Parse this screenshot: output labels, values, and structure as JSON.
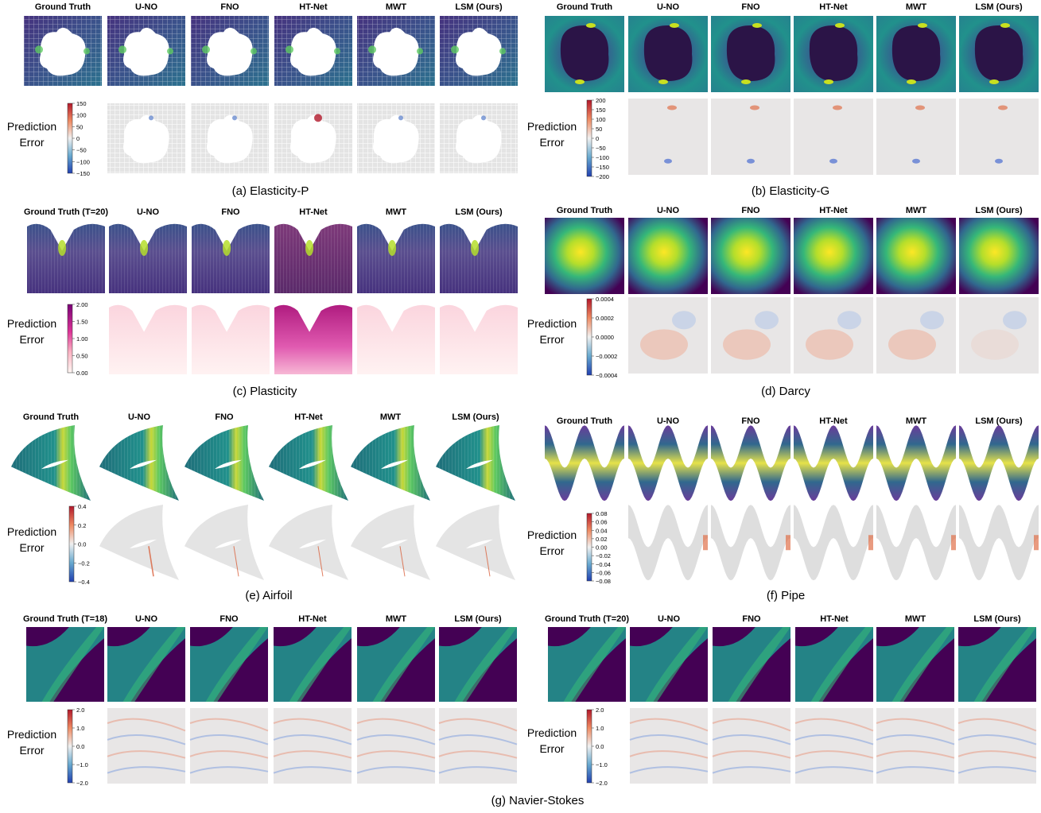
{
  "figure": {
    "methods": [
      "U-NO",
      "FNO",
      "HT-Net",
      "MWT",
      "LSM (Ours)"
    ],
    "error_label": [
      "Prediction",
      "Error"
    ],
    "panels": [
      {
        "id": "elasticity-p",
        "caption": "(a) Elasticity-P",
        "gt_label": "Ground Truth",
        "kind": "elasticity_p",
        "ticks": [
          "150",
          "100",
          "50",
          "0",
          "−50",
          "−100",
          "−150"
        ],
        "cmap": "bwr"
      },
      {
        "id": "elasticity-g",
        "caption": "(b) Elasticity-G",
        "gt_label": "Ground Truth",
        "kind": "elasticity_g",
        "ticks": [
          "200",
          "150",
          "100",
          "50",
          "0",
          "−50",
          "−100",
          "−150",
          "−200"
        ],
        "cmap": "bwr"
      },
      {
        "id": "plasticity",
        "caption": "(c) Plasticity",
        "gt_label": "Ground Truth (T=20)",
        "kind": "plasticity",
        "ticks": [
          "2.00",
          "1.50",
          "1.00",
          "0.50",
          "0.00"
        ],
        "cmap": "pink"
      },
      {
        "id": "darcy",
        "caption": "(d) Darcy",
        "gt_label": "Ground Truth",
        "kind": "darcy",
        "ticks": [
          "0.0004",
          "0.0002",
          "0.0000",
          "−0.0002",
          "−0.0004"
        ],
        "cmap": "bwr"
      },
      {
        "id": "airfoil",
        "caption": "(e) Airfoil",
        "gt_label": "Ground Truth",
        "kind": "airfoil",
        "ticks": [
          "0.4",
          "0.2",
          "0.0",
          "−0.2",
          "−0.4"
        ],
        "cmap": "bwr"
      },
      {
        "id": "pipe",
        "caption": "(f) Pipe",
        "gt_label": "Ground Truth",
        "kind": "pipe",
        "ticks": [
          "0.08",
          "0.06",
          "0.04",
          "0.02",
          "0.00",
          "−0.02",
          "−0.04",
          "−0.06",
          "−0.08"
        ],
        "cmap": "bwr"
      },
      {
        "id": "ns-18",
        "caption": "",
        "gt_label": "Ground Truth (T=18)",
        "kind": "ns",
        "ticks": [
          "2.0",
          "1.0",
          "0.0",
          "−1.0",
          "−2.0"
        ],
        "cmap": "bwr"
      },
      {
        "id": "ns-20",
        "caption": "",
        "gt_label": "Ground Truth (T=20)",
        "kind": "ns",
        "ticks": [
          "2.0",
          "1.0",
          "0.0",
          "−1.0",
          "−2.0"
        ],
        "cmap": "bwr"
      }
    ],
    "bottom_caption": "(g) Navier-Stokes"
  },
  "colors": {
    "viridis_dark": "#440154",
    "viridis_mid": "#21918c",
    "viridis_yellow": "#fde725",
    "error_bg": "#e6e6e6",
    "error_red": "#c0392b",
    "error_blue": "#3b5bdb"
  }
}
